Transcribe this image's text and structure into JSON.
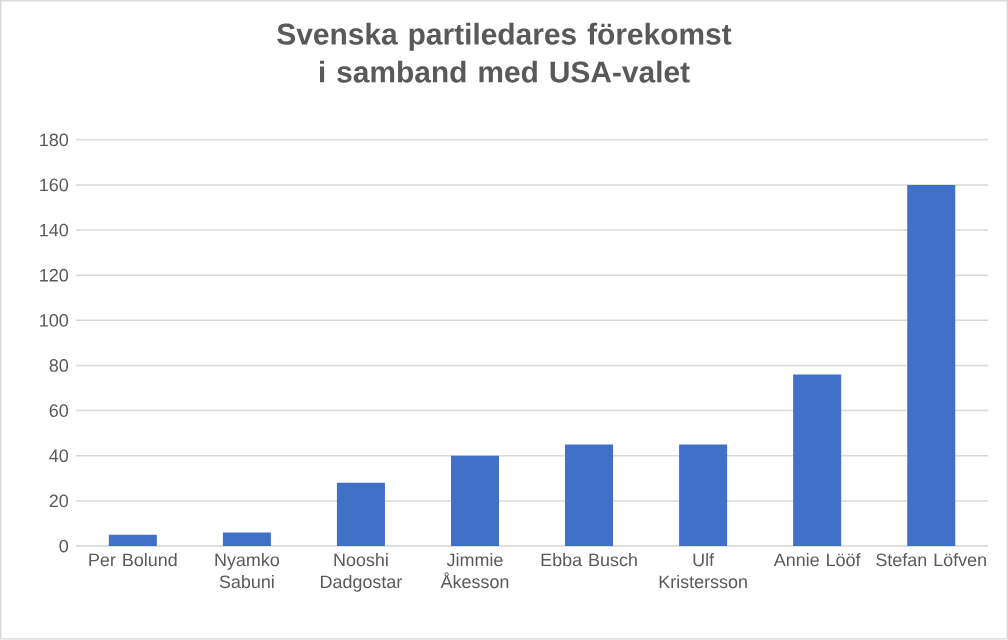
{
  "chart_data": {
    "type": "bar",
    "title": "Svenska partiledares förekomst i samband med USA-valet",
    "categories": [
      "Per Bolund",
      "Nyamko Sabuni",
      "Nooshi Dadgostar",
      "Jimmie Åkesson",
      "Ebba Busch",
      "Ulf Kristersson",
      "Annie Lööf",
      "Stefan Löfven"
    ],
    "values": [
      5,
      6,
      28,
      40,
      45,
      45,
      76,
      160
    ],
    "color": "#4070c8",
    "ylim": [
      0,
      180
    ],
    "yticks": [
      0,
      20,
      40,
      60,
      80,
      100,
      120,
      140,
      160,
      180
    ],
    "grid": "y"
  }
}
